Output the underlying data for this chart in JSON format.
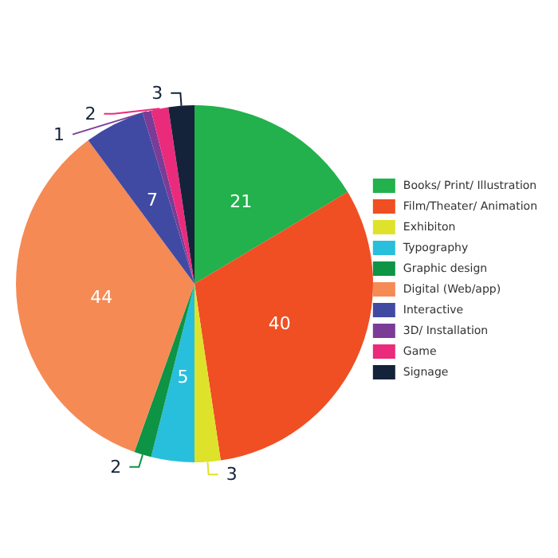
{
  "chart_data": {
    "type": "pie",
    "categories": [
      "Books/ Print/ Illustration",
      "Film/Theater/ Animation",
      "Exhibiton",
      "Typography",
      "Graphic design",
      "Digital (Web/app)",
      "Interactive",
      "3D/ Installation",
      "Game",
      "Signage"
    ],
    "values": [
      21,
      40,
      3,
      5,
      2,
      44,
      7,
      1,
      2,
      3
    ],
    "colors": [
      "#22b14c",
      "#f04e23",
      "#dfe22b",
      "#27bfdc",
      "#0d9444",
      "#f58a55",
      "#414aa3",
      "#7b3c98",
      "#ea2b7b",
      "#14223a"
    ],
    "data_labels": true,
    "legend": "right"
  }
}
